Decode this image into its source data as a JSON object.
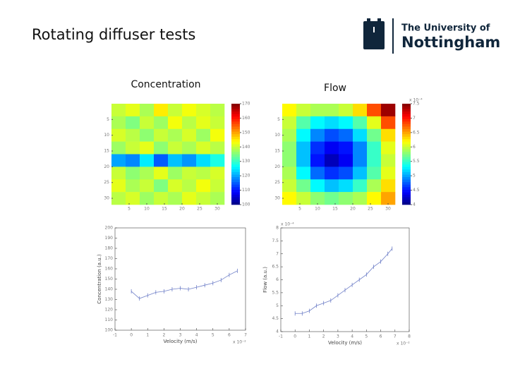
{
  "slide": {
    "title": "Rotating diffuser tests",
    "logo": {
      "line1": "The University of",
      "line2": "Nottingham"
    }
  },
  "chart_data": [
    {
      "type": "heatmap",
      "title": "Concentration",
      "colormap": "jet",
      "xlim": [
        0,
        32
      ],
      "ylim": [
        0,
        32
      ],
      "xticks": [
        5,
        10,
        15,
        20,
        25,
        30
      ],
      "yticks": [
        5,
        10,
        15,
        20,
        25,
        30
      ],
      "clim": [
        100,
        170
      ],
      "cticks": [
        100,
        110,
        120,
        130,
        140,
        150,
        160,
        170
      ],
      "z": [
        [
          140,
          142,
          138,
          145,
          140,
          143,
          141,
          139
        ],
        [
          138,
          135,
          140,
          137,
          143,
          139,
          142,
          140
        ],
        [
          141,
          139,
          136,
          140,
          138,
          141,
          137,
          143
        ],
        [
          137,
          140,
          142,
          136,
          140,
          138,
          141,
          139
        ],
        [
          120,
          118,
          125,
          115,
          122,
          119,
          124,
          128
        ],
        [
          140,
          136,
          138,
          142,
          137,
          140,
          139,
          141
        ],
        [
          142,
          138,
          140,
          135,
          141,
          139,
          143,
          140
        ],
        [
          139,
          141,
          137,
          140,
          138,
          142,
          140,
          138
        ]
      ]
    },
    {
      "type": "heatmap",
      "title": "Flow",
      "colormap": "jet",
      "colorbar_label": "x 10⁻⁴",
      "xlim": [
        0,
        32
      ],
      "ylim": [
        0,
        32
      ],
      "xticks": [
        5,
        10,
        15,
        20,
        25,
        30
      ],
      "yticks": [
        5,
        10,
        15,
        20,
        25,
        30
      ],
      "clim": [
        4,
        7.5
      ],
      "cticks": [
        4,
        4.5,
        5,
        5.5,
        6,
        6.5,
        7,
        7.5
      ],
      "z": [
        [
          6.2,
          6.0,
          5.9,
          5.9,
          6.0,
          6.3,
          6.8,
          7.4
        ],
        [
          6.0,
          5.6,
          5.3,
          5.2,
          5.3,
          5.6,
          6.1,
          6.8
        ],
        [
          5.9,
          5.3,
          4.9,
          4.7,
          4.8,
          5.2,
          5.7,
          6.3
        ],
        [
          5.8,
          5.1,
          4.6,
          4.4,
          4.5,
          4.9,
          5.5,
          6.1
        ],
        [
          5.8,
          5.1,
          4.5,
          4.2,
          4.4,
          4.9,
          5.5,
          6.0
        ],
        [
          5.9,
          5.3,
          4.8,
          4.6,
          4.7,
          5.1,
          5.6,
          6.1
        ],
        [
          6.0,
          5.7,
          5.3,
          5.1,
          5.2,
          5.5,
          5.9,
          6.3
        ],
        [
          6.2,
          6.0,
          5.8,
          5.7,
          5.8,
          5.9,
          6.2,
          6.5
        ]
      ]
    },
    {
      "type": "line",
      "x_label": "Velocity (m/s)",
      "y_label": "Concentration (a.u.)",
      "x_exponent": "x 10⁻²",
      "xlim": [
        -1,
        7
      ],
      "xticks": [
        -1,
        0,
        1,
        2,
        3,
        4,
        5,
        6,
        7
      ],
      "ylim": [
        100,
        200
      ],
      "yticks": [
        100,
        110,
        120,
        130,
        140,
        150,
        160,
        170,
        180,
        190,
        200
      ],
      "series": [
        {
          "color": "#7080c8",
          "x": [
            0,
            0.5,
            1,
            1.5,
            2,
            2.5,
            3,
            3.5,
            4,
            4.5,
            5,
            5.5,
            6,
            6.5
          ],
          "values": [
            138,
            131,
            134,
            137,
            138,
            140,
            141,
            140,
            142,
            144,
            146,
            149,
            154,
            158
          ]
        }
      ]
    },
    {
      "type": "line",
      "x_label": "Velocity (m/s)",
      "y_label": "Flow (a.u.)",
      "x_exponent": "x 10⁻²",
      "y_exponent": "x 10⁻⁴",
      "xlim": [
        -1,
        8
      ],
      "xticks": [
        -1,
        0,
        1,
        2,
        3,
        4,
        5,
        6,
        7,
        8
      ],
      "ylim": [
        4,
        8
      ],
      "yticks": [
        4,
        4.5,
        5,
        5.5,
        6,
        6.5,
        7,
        7.5,
        8
      ],
      "series": [
        {
          "color": "#7080c8",
          "x": [
            0,
            0.5,
            1,
            1.5,
            2,
            2.5,
            3,
            3.5,
            4,
            4.5,
            5,
            5.5,
            6,
            6.5,
            6.8
          ],
          "values": [
            4.7,
            4.7,
            4.8,
            5.0,
            5.1,
            5.2,
            5.4,
            5.6,
            5.8,
            6.0,
            6.2,
            6.5,
            6.7,
            7.0,
            7.2
          ]
        }
      ]
    }
  ]
}
